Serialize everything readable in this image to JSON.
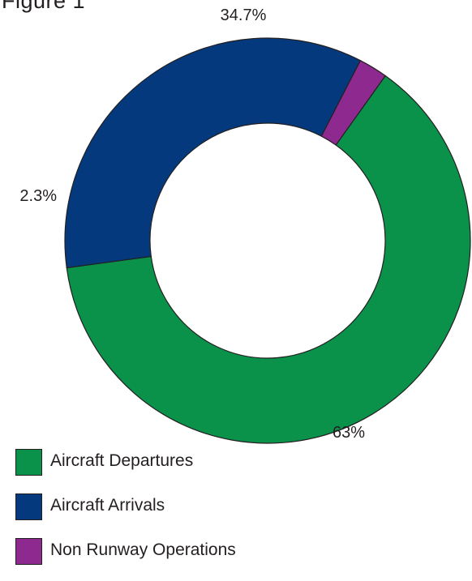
{
  "figure": {
    "title": "Figure 1"
  },
  "chart_data": {
    "type": "pie",
    "style": "donut",
    "start": "top-right, clockwise",
    "categories": [
      "Aircraft Departures",
      "Aircraft Arrivals",
      "Non Runway Operations"
    ],
    "values": [
      63,
      34.7,
      2.3
    ],
    "labels": [
      "63%",
      "34.7%",
      "2.3%"
    ],
    "colors": [
      "#0a924b",
      "#043a7d",
      "#8e2a8f"
    ],
    "legend_position": "bottom-left"
  }
}
